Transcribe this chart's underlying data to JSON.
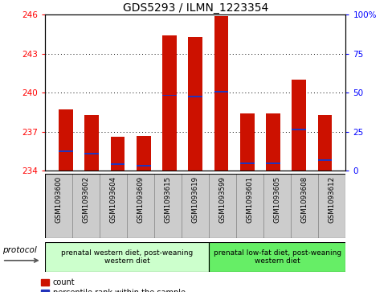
{
  "title": "GDS5293 / ILMN_1223354",
  "samples": [
    "GSM1093600",
    "GSM1093602",
    "GSM1093604",
    "GSM1093609",
    "GSM1093615",
    "GSM1093619",
    "GSM1093599",
    "GSM1093601",
    "GSM1093605",
    "GSM1093608",
    "GSM1093612"
  ],
  "bar_tops": [
    238.7,
    238.3,
    236.6,
    236.7,
    244.4,
    244.3,
    245.9,
    238.4,
    238.4,
    241.0,
    238.3
  ],
  "bar_base": 234.0,
  "blue_values": [
    235.5,
    235.3,
    234.5,
    234.4,
    239.8,
    239.7,
    240.1,
    234.6,
    234.6,
    237.2,
    234.8
  ],
  "ylim_left": [
    234,
    246
  ],
  "ylim_right": [
    0,
    100
  ],
  "yticks_left": [
    234,
    237,
    240,
    243,
    246
  ],
  "yticks_right": [
    0,
    25,
    50,
    75,
    100
  ],
  "ytick_right_labels": [
    "0",
    "25",
    "50",
    "75",
    "100%"
  ],
  "group1_count": 6,
  "group2_count": 5,
  "group1_label": "prenatal western diet, post-weaning\nwestern diet",
  "group2_label": "prenatal low-fat diet, post-weaning\nwestern diet",
  "protocol_label": "protocol",
  "legend_count": "count",
  "legend_percentile": "percentile rank within the sample",
  "bar_color": "#cc1100",
  "blue_color": "#2233bb",
  "group1_bg": "#ccffcc",
  "group2_bg": "#66ee66",
  "tick_bg": "#cccccc",
  "bar_width": 0.55,
  "title_fontsize": 10,
  "axis_fontsize": 8,
  "tick_fontsize": 7.5,
  "label_fontsize": 7
}
